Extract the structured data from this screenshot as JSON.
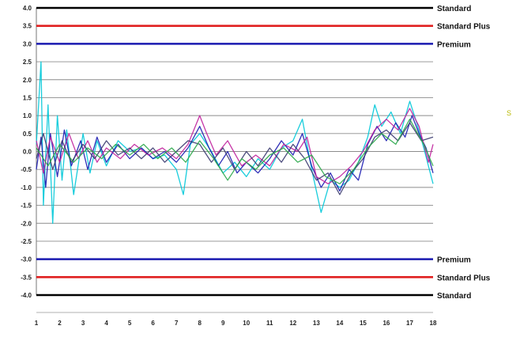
{
  "chart_data": {
    "type": "line",
    "title": "",
    "xlabel": "",
    "ylabel": "",
    "xlim": [
      1,
      18
    ],
    "ylim": [
      -4.0,
      4.0
    ],
    "x_ticks": [
      "1",
      "2",
      "3",
      "4",
      "5",
      "6",
      "7",
      "8",
      "9",
      "10",
      "11",
      "12",
      "13",
      "14",
      "15",
      "16",
      "17",
      "18"
    ],
    "y_ticks": [
      "4.0",
      "3.5",
      "3.0",
      "2.5",
      "2.0",
      "1.5",
      "1.0",
      "0.5",
      "0.0",
      "-0.5",
      "-1.0",
      "-1.5",
      "-2.0",
      "-2.5",
      "-3.0",
      "-3.5",
      "-4.0"
    ],
    "grid": true,
    "reference_lines": [
      {
        "label": "Standard",
        "y": 4.0,
        "color": "#000000"
      },
      {
        "label": "Standard Plus",
        "y": 3.5,
        "color": "#e02020"
      },
      {
        "label": "Premium",
        "y": 3.0,
        "color": "#1a1ab0"
      },
      {
        "label": "Premium",
        "y": -3.0,
        "color": "#1a1ab0"
      },
      {
        "label": "Standard Plus",
        "y": -3.5,
        "color": "#e02020"
      },
      {
        "label": "Standard",
        "y": -4.0,
        "color": "#000000"
      }
    ],
    "series": [
      {
        "color": "#00c8d8",
        "values": [
          [
            1,
            0.2
          ],
          [
            1.2,
            2.5
          ],
          [
            1.3,
            -1.5
          ],
          [
            1.5,
            1.3
          ],
          [
            1.7,
            -2.0
          ],
          [
            1.9,
            1.0
          ],
          [
            2.1,
            -0.8
          ],
          [
            2.3,
            0.6
          ],
          [
            2.6,
            -1.2
          ],
          [
            3.0,
            0.5
          ],
          [
            3.3,
            -0.6
          ],
          [
            3.6,
            0.3
          ],
          [
            4.0,
            -0.4
          ],
          [
            4.5,
            0.3
          ],
          [
            5.0,
            0.0
          ],
          [
            5.5,
            0.1
          ],
          [
            6.0,
            -0.2
          ],
          [
            6.5,
            -0.1
          ],
          [
            7.0,
            -0.5
          ],
          [
            7.3,
            -1.2
          ],
          [
            7.6,
            0.2
          ],
          [
            8.0,
            0.5
          ],
          [
            8.5,
            0.0
          ],
          [
            9.0,
            -0.6
          ],
          [
            9.5,
            -0.3
          ],
          [
            10.0,
            -0.7
          ],
          [
            10.5,
            -0.2
          ],
          [
            11.0,
            -0.5
          ],
          [
            11.5,
            0.1
          ],
          [
            12.0,
            0.3
          ],
          [
            12.4,
            0.9
          ],
          [
            12.8,
            -0.5
          ],
          [
            13.2,
            -1.7
          ],
          [
            13.6,
            -0.8
          ],
          [
            14.0,
            -1.0
          ],
          [
            14.4,
            -0.8
          ],
          [
            14.8,
            -0.3
          ],
          [
            15.2,
            0.4
          ],
          [
            15.5,
            1.3
          ],
          [
            15.8,
            0.7
          ],
          [
            16.2,
            1.1
          ],
          [
            16.6,
            0.5
          ],
          [
            17.0,
            1.4
          ],
          [
            17.3,
            0.8
          ],
          [
            17.6,
            0.1
          ],
          [
            18.0,
            -0.9
          ]
        ]
      },
      {
        "color": "#1a1ab0",
        "values": [
          [
            1,
            -0.5
          ],
          [
            1.2,
            0.4
          ],
          [
            1.4,
            -1.0
          ],
          [
            1.6,
            0.5
          ],
          [
            1.9,
            -0.7
          ],
          [
            2.2,
            0.6
          ],
          [
            2.5,
            -0.4
          ],
          [
            2.9,
            0.3
          ],
          [
            3.2,
            -0.5
          ],
          [
            3.6,
            0.4
          ],
          [
            4.0,
            -0.3
          ],
          [
            4.5,
            0.2
          ],
          [
            5.0,
            -0.2
          ],
          [
            5.5,
            0.1
          ],
          [
            6.0,
            -0.2
          ],
          [
            6.5,
            0.0
          ],
          [
            7.0,
            -0.3
          ],
          [
            7.5,
            0.1
          ],
          [
            8.0,
            0.7
          ],
          [
            8.4,
            0.1
          ],
          [
            8.8,
            -0.4
          ],
          [
            9.2,
            0.0
          ],
          [
            9.6,
            -0.6
          ],
          [
            10.0,
            -0.3
          ],
          [
            10.5,
            -0.6
          ],
          [
            11.0,
            -0.2
          ],
          [
            11.5,
            0.3
          ],
          [
            12.0,
            -0.1
          ],
          [
            12.4,
            0.5
          ],
          [
            12.8,
            -0.4
          ],
          [
            13.2,
            -1.0
          ],
          [
            13.6,
            -0.6
          ],
          [
            14.0,
            -1.1
          ],
          [
            14.4,
            -0.5
          ],
          [
            14.8,
            -0.8
          ],
          [
            15.2,
            0.2
          ],
          [
            15.6,
            0.7
          ],
          [
            16.0,
            0.3
          ],
          [
            16.4,
            0.8
          ],
          [
            16.8,
            0.4
          ],
          [
            17.1,
            1.0
          ],
          [
            17.4,
            0.5
          ],
          [
            17.7,
            0.1
          ],
          [
            18.0,
            -0.6
          ]
        ]
      },
      {
        "color": "#c0209c",
        "values": [
          [
            1,
            0.3
          ],
          [
            1.3,
            -0.6
          ],
          [
            1.6,
            0.4
          ],
          [
            2.0,
            -0.3
          ],
          [
            2.4,
            0.5
          ],
          [
            2.8,
            -0.2
          ],
          [
            3.2,
            0.3
          ],
          [
            3.6,
            -0.3
          ],
          [
            4.0,
            0.1
          ],
          [
            4.6,
            -0.2
          ],
          [
            5.2,
            0.2
          ],
          [
            5.8,
            -0.1
          ],
          [
            6.4,
            0.1
          ],
          [
            7.0,
            -0.2
          ],
          [
            7.5,
            0.2
          ],
          [
            8.0,
            1.0
          ],
          [
            8.3,
            0.5
          ],
          [
            8.7,
            -0.1
          ],
          [
            9.2,
            0.3
          ],
          [
            9.8,
            -0.4
          ],
          [
            10.4,
            -0.1
          ],
          [
            11.0,
            -0.4
          ],
          [
            11.6,
            0.2
          ],
          [
            12.2,
            0.0
          ],
          [
            12.6,
            0.4
          ],
          [
            13.0,
            -0.7
          ],
          [
            13.5,
            -0.9
          ],
          [
            14.0,
            -0.7
          ],
          [
            14.5,
            -0.4
          ],
          [
            15.0,
            0.0
          ],
          [
            15.5,
            0.6
          ],
          [
            16.0,
            0.9
          ],
          [
            16.5,
            0.6
          ],
          [
            17.0,
            1.2
          ],
          [
            17.4,
            0.7
          ],
          [
            17.8,
            -0.3
          ],
          [
            18.0,
            0.2
          ]
        ]
      },
      {
        "color": "#3a3a70",
        "values": [
          [
            1,
            -0.2
          ],
          [
            1.3,
            0.5
          ],
          [
            1.7,
            -0.5
          ],
          [
            2.1,
            0.3
          ],
          [
            2.5,
            -0.3
          ],
          [
            3.0,
            0.2
          ],
          [
            3.5,
            -0.2
          ],
          [
            4.0,
            0.3
          ],
          [
            4.5,
            -0.1
          ],
          [
            5.0,
            0.1
          ],
          [
            5.5,
            -0.2
          ],
          [
            6.0,
            0.1
          ],
          [
            6.5,
            -0.3
          ],
          [
            7.0,
            0.0
          ],
          [
            7.5,
            0.3
          ],
          [
            8.0,
            0.2
          ],
          [
            8.5,
            -0.3
          ],
          [
            9.0,
            0.1
          ],
          [
            9.5,
            -0.5
          ],
          [
            10.0,
            0.0
          ],
          [
            10.5,
            -0.4
          ],
          [
            11.0,
            0.1
          ],
          [
            11.5,
            -0.3
          ],
          [
            12.0,
            0.2
          ],
          [
            12.5,
            -0.2
          ],
          [
            13.0,
            -0.8
          ],
          [
            13.5,
            -0.6
          ],
          [
            14.0,
            -1.2
          ],
          [
            14.5,
            -0.6
          ],
          [
            15.0,
            -0.2
          ],
          [
            15.5,
            0.4
          ],
          [
            16.0,
            0.6
          ],
          [
            16.5,
            0.3
          ],
          [
            17.0,
            0.8
          ],
          [
            17.5,
            0.3
          ],
          [
            18.0,
            0.4
          ]
        ]
      },
      {
        "color": "#2aa84a",
        "values": [
          [
            1,
            0.1
          ],
          [
            1.5,
            -0.4
          ],
          [
            2.0,
            0.2
          ],
          [
            2.6,
            -0.3
          ],
          [
            3.2,
            0.1
          ],
          [
            3.8,
            -0.2
          ],
          [
            4.4,
            0.2
          ],
          [
            5.0,
            -0.1
          ],
          [
            5.6,
            0.2
          ],
          [
            6.2,
            -0.2
          ],
          [
            6.8,
            0.1
          ],
          [
            7.4,
            -0.3
          ],
          [
            8.0,
            0.3
          ],
          [
            8.6,
            -0.2
          ],
          [
            9.2,
            -0.8
          ],
          [
            9.8,
            -0.2
          ],
          [
            10.4,
            -0.5
          ],
          [
            11.0,
            -0.1
          ],
          [
            11.6,
            0.1
          ],
          [
            12.2,
            -0.3
          ],
          [
            12.8,
            -0.1
          ],
          [
            13.4,
            -0.7
          ],
          [
            14.0,
            -0.9
          ],
          [
            14.6,
            -0.5
          ],
          [
            15.2,
            0.1
          ],
          [
            15.8,
            0.5
          ],
          [
            16.4,
            0.2
          ],
          [
            17.0,
            0.9
          ],
          [
            17.6,
            0.2
          ],
          [
            18.0,
            -0.4
          ]
        ]
      }
    ]
  },
  "stray_mark": "S"
}
